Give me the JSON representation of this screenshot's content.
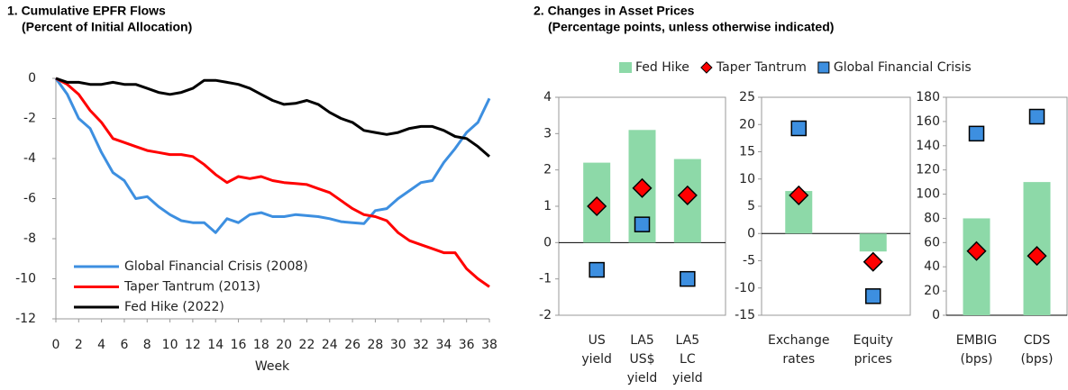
{
  "chart_data": [
    {
      "type": "line",
      "title": "1.  Cumulative EPFR Flows",
      "subtitle": "(Percent of Initial Allocation)",
      "x_label": "Week",
      "x": [
        0,
        1,
        2,
        3,
        4,
        5,
        6,
        7,
        8,
        9,
        10,
        11,
        12,
        13,
        14,
        15,
        16,
        17,
        18,
        19,
        20,
        21,
        22,
        23,
        24,
        25,
        26,
        27,
        28,
        29,
        30,
        31,
        32,
        33,
        34,
        35,
        36,
        37,
        38
      ],
      "xlim": [
        0,
        38
      ],
      "xticks": [
        0,
        2,
        4,
        6,
        8,
        10,
        12,
        14,
        16,
        18,
        20,
        22,
        24,
        26,
        28,
        30,
        32,
        34,
        36,
        38
      ],
      "ylim": [
        -12,
        0
      ],
      "yticks": [
        0,
        -2,
        -4,
        -6,
        -8,
        -10,
        -12
      ],
      "series": [
        {
          "name": "Global Financial Crisis (2008)",
          "color": "#3d8fe0",
          "values": [
            0,
            -0.8,
            -2.0,
            -2.5,
            -3.7,
            -4.7,
            -5.1,
            -6.0,
            -5.9,
            -6.4,
            -6.8,
            -7.1,
            -7.2,
            -7.2,
            -7.7,
            -7.0,
            -7.2,
            -6.8,
            -6.7,
            -6.9,
            -6.9,
            -6.8,
            -6.85,
            -6.9,
            -7.0,
            -7.15,
            -7.2,
            -7.25,
            -6.6,
            -6.5,
            -6.0,
            -5.6,
            -5.2,
            -5.1,
            -4.2,
            -3.5,
            -2.7,
            -2.2,
            -1.0
          ]
        },
        {
          "name": "Taper Tantrum (2013)",
          "color": "#ff0000",
          "values": [
            0,
            -0.3,
            -0.8,
            -1.6,
            -2.2,
            -3.0,
            -3.2,
            -3.4,
            -3.6,
            -3.7,
            -3.8,
            -3.8,
            -3.9,
            -4.3,
            -4.8,
            -5.2,
            -4.9,
            -5.0,
            -4.9,
            -5.1,
            -5.2,
            -5.25,
            -5.3,
            -5.5,
            -5.7,
            -6.1,
            -6.5,
            -6.8,
            -6.9,
            -7.1,
            -7.7,
            -8.1,
            -8.3,
            -8.5,
            -8.7,
            -8.7,
            -9.5,
            -10.0,
            -10.4
          ]
        },
        {
          "name": "Fed Hike (2022)",
          "color": "#000000",
          "values": [
            0,
            -0.2,
            -0.2,
            -0.3,
            -0.3,
            -0.2,
            -0.3,
            -0.3,
            -0.5,
            -0.7,
            -0.8,
            -0.7,
            -0.5,
            -0.1,
            -0.1,
            -0.2,
            -0.3,
            -0.5,
            -0.8,
            -1.1,
            -1.3,
            -1.25,
            -1.1,
            -1.3,
            -1.7,
            -2.0,
            -2.2,
            -2.6,
            -2.7,
            -2.8,
            -2.7,
            -2.5,
            -2.4,
            -2.4,
            -2.6,
            -2.9,
            -3.0,
            -3.4,
            -3.9
          ]
        }
      ]
    },
    {
      "type": "bar_marker",
      "title": "2.  Changes in Asset Prices",
      "subtitle": "(Percentage points, unless otherwise indicated)",
      "legend": [
        {
          "name": "Fed Hike",
          "color": "#8dd9a8",
          "marker": "bar"
        },
        {
          "name": "Taper Tantrum",
          "color": "#ff0000",
          "marker": "diamond"
        },
        {
          "name": "Global Financial Crisis",
          "color": "#3d8fe0",
          "marker": "square"
        }
      ],
      "panels": [
        {
          "categories": [
            [
              "US",
              "yield"
            ],
            [
              "LA5",
              "US$",
              "yield"
            ],
            [
              "LA5",
              "LC",
              "yield"
            ]
          ],
          "ylim": [
            -2,
            4
          ],
          "yticks": [
            4,
            3,
            2,
            1,
            0,
            -1,
            -2
          ],
          "series": [
            {
              "values": [
                2.2,
                3.1,
                2.3
              ]
            },
            {
              "values": [
                1.0,
                1.5,
                1.3
              ]
            },
            {
              "values": [
                -0.75,
                0.5,
                -1.0
              ]
            }
          ]
        },
        {
          "categories": [
            [
              "Exchange",
              "rates"
            ],
            [
              "Equity",
              "prices"
            ]
          ],
          "ylim": [
            -15,
            25
          ],
          "yticks": [
            25,
            20,
            15,
            10,
            5,
            0,
            -5,
            -10,
            -15
          ],
          "series": [
            {
              "values": [
                7.8,
                -3.3
              ]
            },
            {
              "values": [
                7.0,
                -5.2
              ]
            },
            {
              "values": [
                19.3,
                -11.5
              ]
            }
          ]
        },
        {
          "categories": [
            [
              "EMBIG",
              "(bps)"
            ],
            [
              "CDS",
              "(bps)"
            ]
          ],
          "ylim": [
            0,
            180
          ],
          "yticks": [
            180,
            160,
            140,
            120,
            100,
            80,
            60,
            40,
            20,
            0
          ],
          "series": [
            {
              "values": [
                80,
                110
              ]
            },
            {
              "values": [
                53,
                49
              ]
            },
            {
              "values": [
                150,
                164
              ]
            }
          ]
        }
      ]
    }
  ]
}
